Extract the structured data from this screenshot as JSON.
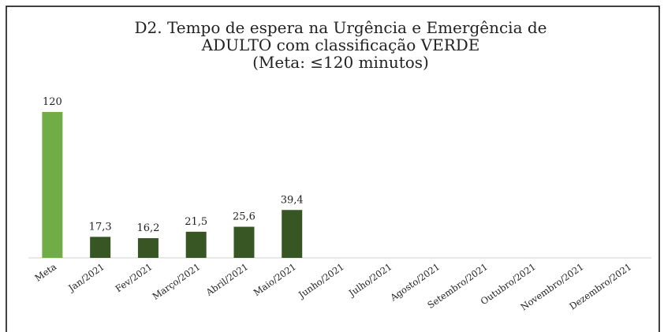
{
  "chart_data": {
    "type": "bar",
    "title": [
      "D2. Tempo de espera na Urgência e Emergência de",
      "ADULTO com classificação VERDE",
      "(Meta: ≤120 minutos)"
    ],
    "categories": [
      "Meta",
      "Jan/2021",
      "Fev/2021",
      "Março/2021",
      "Abril/2021",
      "Maio/2021",
      "Junho/2021",
      "Julho/2021",
      "Agosto/2021",
      "Setembro/2021",
      "Outubro/2021",
      "Novembro/2021",
      "Dezembro/2021"
    ],
    "values": [
      120,
      17.3,
      16.2,
      21.5,
      25.6,
      39.4,
      null,
      null,
      null,
      null,
      null,
      null,
      null
    ],
    "value_labels": [
      "120",
      "17,3",
      "16,2",
      "21,5",
      "25,6",
      "39,4",
      null,
      null,
      null,
      null,
      null,
      null,
      null
    ],
    "colors": [
      "#70ad47",
      "#375623",
      "#375623",
      "#375623",
      "#375623",
      "#375623",
      "#375623",
      "#375623",
      "#375623",
      "#375623",
      "#375623",
      "#375623",
      "#375623"
    ],
    "ylim": [
      0,
      120
    ]
  }
}
